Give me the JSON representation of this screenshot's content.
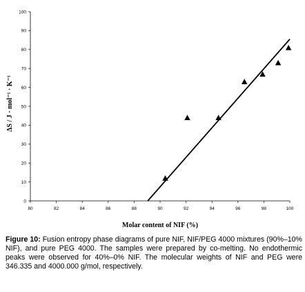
{
  "chart_data": {
    "type": "scatter",
    "title": "",
    "xlabel": "Molar content of NIF (%)",
    "ylabel": "ΔS / J · mol⁻¹ · K⁻¹",
    "xlim": [
      80,
      100
    ],
    "ylim": [
      0,
      100
    ],
    "x_ticks": [
      "80",
      "82",
      "84",
      "86",
      "88",
      "90",
      "92",
      "94",
      "96",
      "98",
      "100"
    ],
    "y_ticks": [
      "0",
      "10",
      "20",
      "30",
      "40",
      "50",
      "60",
      "70",
      "80",
      "90",
      "100"
    ],
    "grid": false,
    "legend": "none",
    "marker": "triangle",
    "points": [
      {
        "x": 90.4,
        "y": 12
      },
      {
        "x": 92.1,
        "y": 44
      },
      {
        "x": 94.5,
        "y": 44
      },
      {
        "x": 96.5,
        "y": 63
      },
      {
        "x": 97.9,
        "y": 67
      },
      {
        "x": 99.1,
        "y": 73
      },
      {
        "x": 99.9,
        "y": 81
      }
    ],
    "fit_line": {
      "x": [
        89.05,
        100
      ],
      "y": [
        0,
        85.5
      ]
    }
  },
  "caption": {
    "label": "Figure 10:",
    "text": " Fusion entropy phase diagrams of pure NIF, NIF/PEG 4000 mixtures (90%–10% NIF), and pure PEG 4000. The samples were prepared by co-melting. No endothermic peaks were observed for 40%–0% NIF. The molecular weights of NIF and PEG were 346.335 and 4000.000 g/mol, respectively."
  },
  "colors": {
    "ink": "#000000",
    "background": "#ffffff"
  }
}
